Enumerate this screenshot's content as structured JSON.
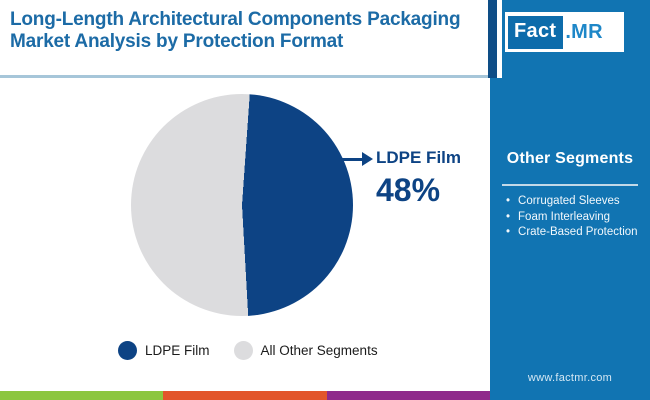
{
  "header": {
    "title_line1": "Long-Length Architectural Components Packaging",
    "title_line2": "Market Analysis by Protection Format"
  },
  "logo": {
    "name": "Fact.MR",
    "part_fact": "Fact",
    "part_mr": ".MR"
  },
  "chart_data": {
    "type": "pie",
    "title": "Long-Length Architectural Components Packaging Market Analysis by Protection Format",
    "segments": [
      {
        "label": "LDPE Film",
        "value_pct": 48,
        "color": "#0d4384"
      },
      {
        "label": "All Other Segments",
        "value_pct": 52,
        "color": "#dcdcde"
      }
    ],
    "callout": {
      "label": "LDPE Film",
      "value_text": "48%"
    },
    "start_angle_deg": 4,
    "legend_position": "bottom"
  },
  "legend": {
    "items": [
      {
        "label": "LDPE Film",
        "color": "#0d4384"
      },
      {
        "label": "All Other Segments",
        "color": "#dcdcde"
      }
    ]
  },
  "sidebar": {
    "heading": "Other Segments",
    "bullets": [
      "Corrugated Sleeves",
      "Foam Interleaving",
      "Crate-Based Protection"
    ],
    "website": "www.factmr.com",
    "bg_color": "#1174b2"
  },
  "footer_stripes": [
    "#8cc63f",
    "#e2552b",
    "#8f2a8b"
  ]
}
